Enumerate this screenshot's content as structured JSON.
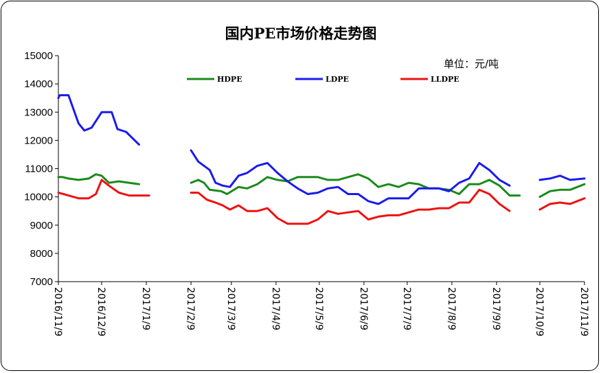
{
  "chart_data": {
    "type": "line",
    "title": "国内PE市场价格走势图",
    "unit": "单位：元/吨",
    "ylim": [
      7000,
      15000
    ],
    "yticks": [
      7000,
      8000,
      9000,
      10000,
      11000,
      12000,
      13000,
      14000,
      15000
    ],
    "x_tick_labels": [
      "2016/11/9",
      "2016/12/9",
      "2017/1/9",
      "2017/2/9",
      "2017/3/9",
      "2017/4/9",
      "2017/5/9",
      "2017/6/9",
      "2017/7/9",
      "2017/8/9",
      "2017/9/9",
      "2017/10/9",
      "2017/11/9"
    ],
    "legend_position": "top",
    "grid": false,
    "series": [
      {
        "name": "HDPE",
        "color": "#1a8a1a",
        "segments": [
          [
            [
              "2016-11-09",
              10700
            ],
            [
              "2016-11-12",
              10700
            ],
            [
              "2016-11-16",
              10650
            ],
            [
              "2016-11-23",
              10600
            ],
            [
              "2016-11-30",
              10650
            ],
            [
              "2016-12-05",
              10800
            ],
            [
              "2016-12-09",
              10750
            ],
            [
              "2016-12-14",
              10500
            ],
            [
              "2016-12-21",
              10550
            ],
            [
              "2016-12-28",
              10500
            ],
            [
              "2017-01-04",
              10450
            ]
          ],
          [
            [
              "2017-02-09",
              10500
            ],
            [
              "2017-02-14",
              10600
            ],
            [
              "2017-02-18",
              10500
            ],
            [
              "2017-02-22",
              10250
            ],
            [
              "2017-03-02",
              10200
            ],
            [
              "2017-03-06",
              10100
            ],
            [
              "2017-03-14",
              10350
            ],
            [
              "2017-03-20",
              10300
            ],
            [
              "2017-03-27",
              10450
            ],
            [
              "2017-04-03",
              10700
            ],
            [
              "2017-04-10",
              10600
            ],
            [
              "2017-04-17",
              10550
            ],
            [
              "2017-04-24",
              10700
            ],
            [
              "2017-05-08",
              10700
            ],
            [
              "2017-05-15",
              10600
            ],
            [
              "2017-05-22",
              10600
            ],
            [
              "2017-05-29",
              10700
            ],
            [
              "2017-06-05",
              10800
            ],
            [
              "2017-06-12",
              10650
            ],
            [
              "2017-06-19",
              10350
            ],
            [
              "2017-06-26",
              10450
            ],
            [
              "2017-07-03",
              10350
            ],
            [
              "2017-07-10",
              10500
            ],
            [
              "2017-07-17",
              10450
            ],
            [
              "2017-07-24",
              10300
            ],
            [
              "2017-07-31",
              10300
            ],
            [
              "2017-08-07",
              10250
            ],
            [
              "2017-08-14",
              10100
            ],
            [
              "2017-08-21",
              10450
            ],
            [
              "2017-08-28",
              10450
            ],
            [
              "2017-09-04",
              10600
            ],
            [
              "2017-09-11",
              10400
            ],
            [
              "2017-09-18",
              10050
            ],
            [
              "2017-09-25",
              10050
            ]
          ],
          [
            [
              "2017-10-09",
              10000
            ],
            [
              "2017-10-16",
              10200
            ],
            [
              "2017-10-23",
              10250
            ],
            [
              "2017-10-30",
              10250
            ],
            [
              "2017-11-09",
              10450
            ]
          ]
        ]
      },
      {
        "name": "LDPE",
        "color": "#1a1aee",
        "segments": [
          [
            [
              "2016-11-09",
              13500
            ],
            [
              "2016-11-10",
              13600
            ],
            [
              "2016-11-16",
              13600
            ],
            [
              "2016-11-23",
              12600
            ],
            [
              "2016-11-27",
              12350
            ],
            [
              "2016-12-02",
              12450
            ],
            [
              "2016-12-09",
              13000
            ],
            [
              "2016-12-16",
              13000
            ],
            [
              "2016-12-20",
              12400
            ],
            [
              "2016-12-26",
              12300
            ],
            [
              "2016-12-30",
              12100
            ],
            [
              "2017-01-04",
              11850
            ]
          ],
          [
            [
              "2017-02-09",
              11650
            ],
            [
              "2017-02-14",
              11250
            ],
            [
              "2017-02-22",
              10950
            ],
            [
              "2017-02-26",
              10500
            ],
            [
              "2017-03-03",
              10400
            ],
            [
              "2017-03-08",
              10350
            ],
            [
              "2017-03-14",
              10750
            ],
            [
              "2017-03-20",
              10850
            ],
            [
              "2017-03-27",
              11100
            ],
            [
              "2017-04-03",
              11200
            ],
            [
              "2017-04-10",
              10850
            ],
            [
              "2017-04-17",
              10550
            ],
            [
              "2017-04-24",
              10300
            ],
            [
              "2017-05-01",
              10100
            ],
            [
              "2017-05-08",
              10150
            ],
            [
              "2017-05-15",
              10300
            ],
            [
              "2017-05-22",
              10350
            ],
            [
              "2017-05-29",
              10100
            ],
            [
              "2017-06-05",
              10100
            ],
            [
              "2017-06-12",
              9850
            ],
            [
              "2017-06-19",
              9750
            ],
            [
              "2017-06-26",
              9950
            ],
            [
              "2017-07-03",
              9950
            ],
            [
              "2017-07-10",
              9950
            ],
            [
              "2017-07-17",
              10300
            ],
            [
              "2017-07-24",
              10300
            ],
            [
              "2017-07-31",
              10300
            ],
            [
              "2017-08-07",
              10200
            ],
            [
              "2017-08-14",
              10500
            ],
            [
              "2017-08-21",
              10650
            ],
            [
              "2017-08-28",
              11200
            ],
            [
              "2017-09-04",
              10950
            ],
            [
              "2017-09-11",
              10600
            ],
            [
              "2017-09-18",
              10400
            ]
          ],
          [
            [
              "2017-10-09",
              10600
            ],
            [
              "2017-10-16",
              10650
            ],
            [
              "2017-10-23",
              10750
            ],
            [
              "2017-10-30",
              10600
            ],
            [
              "2017-11-09",
              10650
            ]
          ]
        ]
      },
      {
        "name": "LLDPE",
        "color": "#ee1111",
        "segments": [
          [
            [
              "2016-11-09",
              10150
            ],
            [
              "2016-11-16",
              10050
            ],
            [
              "2016-11-23",
              9950
            ],
            [
              "2016-11-30",
              9950
            ],
            [
              "2016-12-05",
              10100
            ],
            [
              "2016-12-09",
              10600
            ],
            [
              "2016-12-14",
              10400
            ],
            [
              "2016-12-21",
              10150
            ],
            [
              "2016-12-28",
              10050
            ],
            [
              "2017-01-04",
              10050
            ],
            [
              "2017-01-11",
              10050
            ]
          ],
          [
            [
              "2017-02-09",
              10150
            ],
            [
              "2017-02-14",
              10150
            ],
            [
              "2017-02-20",
              9900
            ],
            [
              "2017-02-26",
              9800
            ],
            [
              "2017-03-03",
              9700
            ],
            [
              "2017-03-08",
              9550
            ],
            [
              "2017-03-14",
              9700
            ],
            [
              "2017-03-20",
              9500
            ],
            [
              "2017-03-27",
              9500
            ],
            [
              "2017-04-03",
              9600
            ],
            [
              "2017-04-10",
              9250
            ],
            [
              "2017-04-17",
              9050
            ],
            [
              "2017-04-24",
              9050
            ],
            [
              "2017-05-01",
              9050
            ],
            [
              "2017-05-08",
              9200
            ],
            [
              "2017-05-15",
              9500
            ],
            [
              "2017-05-22",
              9400
            ],
            [
              "2017-05-29",
              9450
            ],
            [
              "2017-06-05",
              9500
            ],
            [
              "2017-06-12",
              9200
            ],
            [
              "2017-06-19",
              9300
            ],
            [
              "2017-06-26",
              9350
            ],
            [
              "2017-07-03",
              9350
            ],
            [
              "2017-07-10",
              9450
            ],
            [
              "2017-07-17",
              9550
            ],
            [
              "2017-07-24",
              9550
            ],
            [
              "2017-07-31",
              9600
            ],
            [
              "2017-08-07",
              9600
            ],
            [
              "2017-08-14",
              9800
            ],
            [
              "2017-08-21",
              9800
            ],
            [
              "2017-08-28",
              10250
            ],
            [
              "2017-09-04",
              10100
            ],
            [
              "2017-09-11",
              9750
            ],
            [
              "2017-09-18",
              9500
            ]
          ],
          [
            [
              "2017-10-09",
              9550
            ],
            [
              "2017-10-16",
              9750
            ],
            [
              "2017-10-23",
              9800
            ],
            [
              "2017-10-30",
              9750
            ],
            [
              "2017-11-09",
              9950
            ]
          ]
        ]
      }
    ]
  }
}
